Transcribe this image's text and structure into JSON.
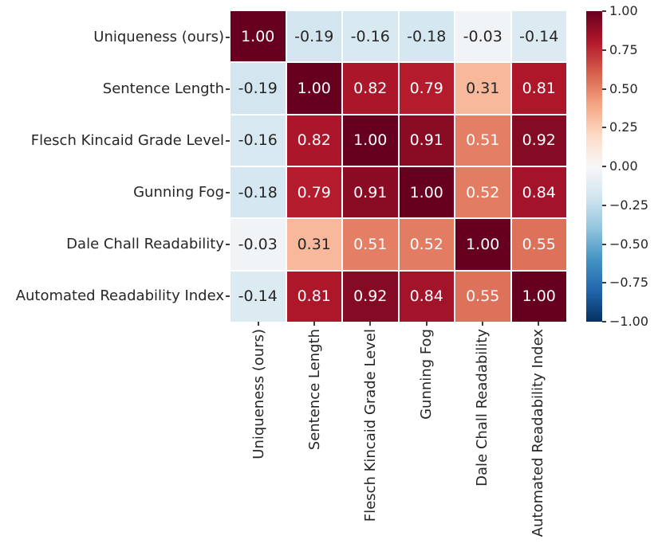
{
  "chart_data": {
    "type": "heatmap",
    "title": "",
    "xlabel": "",
    "ylabel": "",
    "categories": [
      "Uniqueness (ours)",
      "Sentence Length",
      "Flesch Kincaid Grade Level",
      "Gunning Fog",
      "Dale Chall Readability",
      "Automated Readability Index"
    ],
    "matrix": [
      [
        1.0,
        -0.19,
        -0.16,
        -0.18,
        -0.03,
        -0.14
      ],
      [
        -0.19,
        1.0,
        0.82,
        0.79,
        0.31,
        0.81
      ],
      [
        -0.16,
        0.82,
        1.0,
        0.91,
        0.51,
        0.92
      ],
      [
        -0.18,
        0.79,
        0.91,
        1.0,
        0.52,
        0.84
      ],
      [
        -0.03,
        0.31,
        0.51,
        0.52,
        1.0,
        0.55
      ],
      [
        -0.14,
        0.81,
        0.92,
        0.84,
        0.55,
        1.0
      ]
    ],
    "value_format": ".2f",
    "vmin": -1.0,
    "vmax": 1.0,
    "grid_on": false,
    "legend_position": "right-colorbar",
    "colormap": {
      "name": "RdBu_r",
      "stops": [
        "#67001f",
        "#b2182b",
        "#d6604d",
        "#f4a582",
        "#fddbc7",
        "#f7f7f7",
        "#d1e5f0",
        "#92c5de",
        "#4393c3",
        "#2166ac",
        "#053061"
      ]
    },
    "cell_colors": [
      [
        "#67001f",
        "#d3e6f0",
        "#d9e9f1",
        "#d5e7f1",
        "#f0f4f6",
        "#dceaf2"
      ],
      [
        "#d3e6f0",
        "#67001f",
        "#ab162a",
        "#b41c2d",
        "#f7b89c",
        "#ae172a"
      ],
      [
        "#d9e9f1",
        "#ab162a",
        "#67001f",
        "#890b24",
        "#e47f65",
        "#850a24"
      ],
      [
        "#d5e7f1",
        "#b41c2d",
        "#890b24",
        "#67001f",
        "#e27c62",
        "#a31329"
      ],
      [
        "#f0f4f6",
        "#f7b89c",
        "#e47f65",
        "#e27c62",
        "#67001f",
        "#dd715a"
      ],
      [
        "#dceaf2",
        "#ae172a",
        "#850a24",
        "#a31329",
        "#dd715a",
        "#67001f"
      ]
    ],
    "cell_text_colors": [
      [
        "#ffffff",
        "#262626",
        "#262626",
        "#262626",
        "#262626",
        "#262626"
      ],
      [
        "#262626",
        "#ffffff",
        "#ffffff",
        "#ffffff",
        "#262626",
        "#ffffff"
      ],
      [
        "#262626",
        "#ffffff",
        "#ffffff",
        "#ffffff",
        "#ffffff",
        "#ffffff"
      ],
      [
        "#262626",
        "#ffffff",
        "#ffffff",
        "#ffffff",
        "#ffffff",
        "#ffffff"
      ],
      [
        "#262626",
        "#262626",
        "#ffffff",
        "#ffffff",
        "#ffffff",
        "#ffffff"
      ],
      [
        "#262626",
        "#ffffff",
        "#ffffff",
        "#ffffff",
        "#ffffff",
        "#ffffff"
      ]
    ],
    "colorbar_ticks": [
      "1.00",
      "0.75",
      "0.50",
      "0.25",
      "0.00",
      "−0.25",
      "−0.50",
      "−0.75",
      "−1.00"
    ],
    "colors": {
      "background": "#ffffff",
      "grid_line": "#ffffff",
      "label_text": "#262626",
      "tick_mark": "#3d3d3d"
    }
  }
}
